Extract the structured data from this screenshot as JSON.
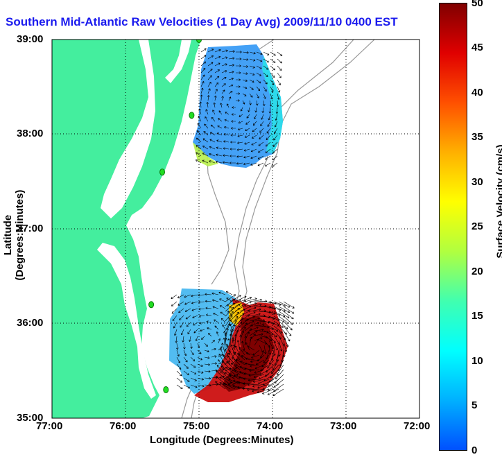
{
  "title": "Southern Mid-Atlantic Raw Velocities (1 Day Avg) 2009/11/10 0400 EST",
  "x_axis": {
    "label": "Longitude (Degrees:Minutes)",
    "ticks": [
      "77:00",
      "76:00",
      "75:00",
      "74:00",
      "73:00",
      "72:00"
    ]
  },
  "y_axis": {
    "label": "Latitude (Degrees:Minutes)",
    "ticks": [
      "39:00",
      "38:00",
      "37:00",
      "36:00",
      "35:00"
    ]
  },
  "colorbar": {
    "label": "Surface Velocity (cm/s)",
    "ticks": [
      "50",
      "45",
      "40",
      "35",
      "30",
      "25",
      "20",
      "15",
      "10",
      "5",
      "0"
    ],
    "range": [
      0,
      50
    ],
    "colors": [
      "#0050ff",
      "#00b0ff",
      "#00ffff",
      "#40ffb0",
      "#b0ff40",
      "#ffff00",
      "#ffb000",
      "#ff5000",
      "#e00000",
      "#800000"
    ]
  },
  "colors": {
    "land": "#44ee9e",
    "title": "#1a1aee",
    "station": "#22dd22"
  },
  "map": {
    "lon_range": [
      -77,
      -72
    ],
    "lat_range": [
      35,
      39
    ],
    "grid": "dotted",
    "stations_lonlat": [
      [
        -75.0,
        39.0
      ],
      [
        -75.1,
        38.2
      ],
      [
        -75.5,
        37.6
      ],
      [
        -75.65,
        36.2
      ],
      [
        -75.45,
        35.3
      ]
    ]
  }
}
